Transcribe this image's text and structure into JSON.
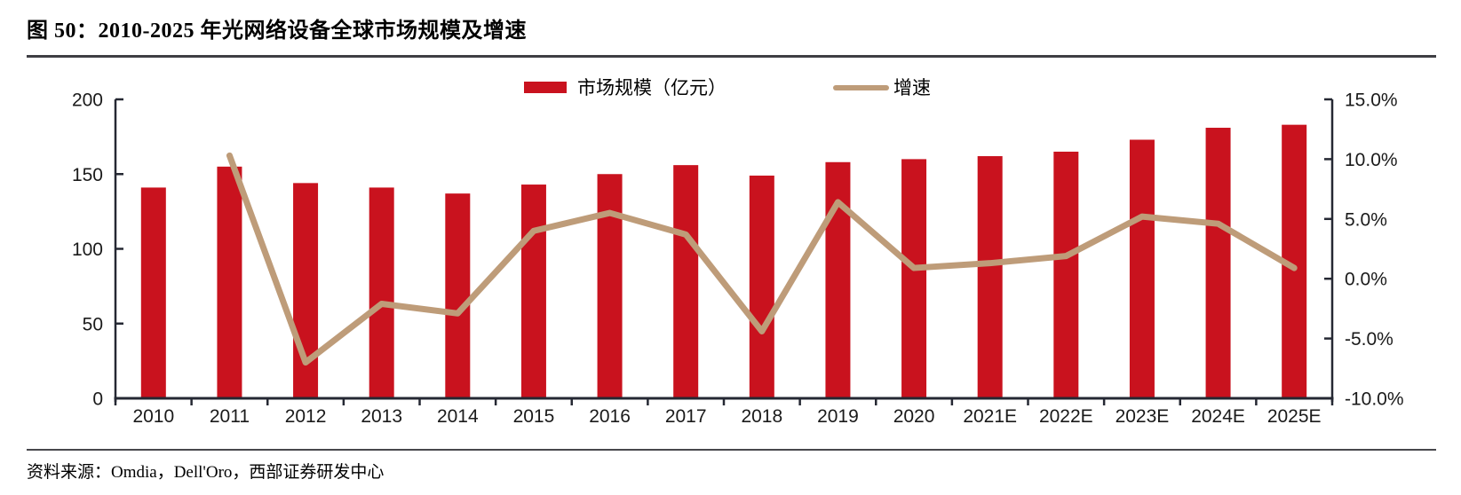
{
  "figure": {
    "title": "图 50：2010-2025 年光网络设备全球市场规模及增速"
  },
  "footer": {
    "source_text": "资料来源：Omdia，Dell'Oro，西部证券研发中心"
  },
  "colors": {
    "bar": "#c9121e",
    "line": "#be9c79",
    "axis": "#252833",
    "tick_text": "#1a1a1a",
    "rule_top": "#3e3e43",
    "rule_bottom": "#47474c"
  },
  "chart_data": {
    "type": "bar",
    "subtype": "combo-bar-line-dual-axis",
    "title": "2010-2025 年光网络设备全球市场规模及增速",
    "categories": [
      "2010",
      "2011",
      "2012",
      "2013",
      "2014",
      "2015",
      "2016",
      "2017",
      "2018",
      "2019",
      "2020",
      "2021E",
      "2022E",
      "2023E",
      "2024E",
      "2025E"
    ],
    "series": [
      {
        "name": "市场规模（亿元）",
        "type": "bar",
        "axis": "left",
        "color": "#c9121e",
        "values": [
          141,
          155,
          144,
          141,
          137,
          143,
          150,
          156,
          149,
          158,
          160,
          162,
          165,
          173,
          181,
          183
        ]
      },
      {
        "name": "增速",
        "type": "line",
        "axis": "right",
        "color": "#be9c79",
        "values": [
          null,
          10.3,
          -7.0,
          -2.1,
          -2.9,
          4.0,
          5.5,
          3.7,
          -4.4,
          6.4,
          0.9,
          1.3,
          1.9,
          5.2,
          4.6,
          0.9
        ]
      }
    ],
    "left_axis": {
      "min": 0,
      "max": 200,
      "ticks": [
        {
          "v": 200,
          "label": "200"
        },
        {
          "v": 150,
          "label": "150"
        },
        {
          "v": 100,
          "label": "100"
        },
        {
          "v": 50,
          "label": "50"
        },
        {
          "v": 0,
          "label": "0"
        }
      ]
    },
    "right_axis": {
      "min": -10,
      "max": 15,
      "ticks": [
        {
          "v": 15,
          "label": "15.0%"
        },
        {
          "v": 10,
          "label": "10.0%"
        },
        {
          "v": 5,
          "label": "5.0%"
        },
        {
          "v": 0,
          "label": "0.0%"
        },
        {
          "v": -5,
          "label": "-5.0%"
        },
        {
          "v": -10,
          "label": "-10.0%"
        }
      ]
    },
    "grid": "off",
    "legend_position": "top-center"
  }
}
